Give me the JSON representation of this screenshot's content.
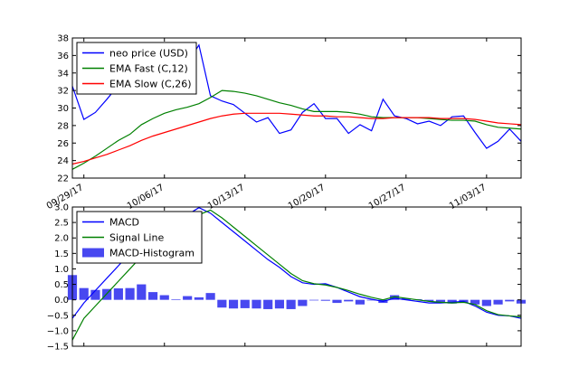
{
  "chart_data": [
    {
      "type": "line",
      "ylim": [
        22,
        38
      ],
      "yticks": [
        22,
        24,
        26,
        28,
        30,
        32,
        34,
        36,
        38
      ],
      "xlim": [
        0,
        39
      ],
      "xtick_positions": [
        1,
        8,
        15,
        22,
        29,
        36
      ],
      "xtick_labels": [
        "09/29/17",
        "10/06/17",
        "10/13/17",
        "10/20/17",
        "10/27/17",
        "11/03/17"
      ],
      "legend_position": "top-left",
      "series": [
        {
          "name": "neo price (USD)",
          "color": "#0000ff",
          "values": [
            32.5,
            28.7,
            29.5,
            31.0,
            32.6,
            34.3,
            35.8,
            34.8,
            33.0,
            31.8,
            35.1,
            37.2,
            31.4,
            30.8,
            30.4,
            29.4,
            28.4,
            28.9,
            27.1,
            27.5,
            29.5,
            30.5,
            28.8,
            28.8,
            27.1,
            28.1,
            27.4,
            31.0,
            29.1,
            28.8,
            28.2,
            28.5,
            28.0,
            29.0,
            29.1,
            27.2,
            25.4,
            26.2,
            27.6,
            26.2
          ]
        },
        {
          "name": "EMA Fast (C,12)",
          "color": "#008000",
          "values": [
            23.0,
            23.7,
            24.5,
            25.4,
            26.3,
            27.0,
            28.1,
            28.8,
            29.4,
            29.8,
            30.1,
            30.5,
            31.2,
            32.0,
            31.9,
            31.7,
            31.4,
            31.0,
            30.6,
            30.3,
            29.9,
            29.6,
            29.6,
            29.6,
            29.5,
            29.3,
            29.0,
            28.9,
            28.9,
            28.9,
            28.9,
            28.8,
            28.7,
            28.6,
            28.6,
            28.5,
            28.1,
            27.8,
            27.7,
            27.6
          ]
        },
        {
          "name": "EMA Slow (C,26)",
          "color": "#ff0000",
          "values": [
            23.6,
            23.9,
            24.3,
            24.7,
            25.2,
            25.7,
            26.3,
            26.8,
            27.2,
            27.6,
            28.0,
            28.4,
            28.8,
            29.1,
            29.3,
            29.4,
            29.4,
            29.4,
            29.4,
            29.3,
            29.2,
            29.1,
            29.1,
            29.0,
            29.0,
            28.9,
            28.8,
            28.8,
            28.9,
            28.9,
            28.9,
            28.9,
            28.8,
            28.8,
            28.8,
            28.7,
            28.5,
            28.3,
            28.2,
            28.1
          ]
        }
      ]
    },
    {
      "type": "line",
      "ylim": [
        -1.5,
        3.0
      ],
      "yticks": [
        -1.5,
        -1.0,
        -0.5,
        0.0,
        0.5,
        1.0,
        1.5,
        2.0,
        2.5,
        3.0
      ],
      "ytick_labels": [
        "−1.5",
        "−1.0",
        "−0.5",
        "0.0",
        "0.5",
        "1.0",
        "1.5",
        "2.0",
        "2.5",
        "3.0"
      ],
      "xlim": [
        0,
        39
      ],
      "legend_position": "top-left",
      "series": [
        {
          "name": "MACD",
          "color": "#0000ff",
          "values": [
            -0.6,
            -0.1,
            0.3,
            0.7,
            1.1,
            1.5,
            1.8,
            2.1,
            2.35,
            2.55,
            2.75,
            2.98,
            2.8,
            2.5,
            2.2,
            1.9,
            1.6,
            1.3,
            1.05,
            0.75,
            0.55,
            0.5,
            0.52,
            0.4,
            0.25,
            0.1,
            0.02,
            -0.05,
            0.05,
            0.0,
            -0.05,
            -0.1,
            -0.1,
            -0.08,
            -0.05,
            -0.2,
            -0.4,
            -0.5,
            -0.52,
            -0.6
          ]
        },
        {
          "name": "Signal Line",
          "color": "#008000",
          "values": [
            -1.3,
            -0.6,
            -0.2,
            0.2,
            0.6,
            1.0,
            1.4,
            1.7,
            2.0,
            2.25,
            2.55,
            2.75,
            2.9,
            2.65,
            2.35,
            2.05,
            1.75,
            1.45,
            1.15,
            0.85,
            0.62,
            0.52,
            0.48,
            0.4,
            0.3,
            0.18,
            0.08,
            0.0,
            0.1,
            0.05,
            0.0,
            -0.05,
            -0.08,
            -0.1,
            -0.08,
            -0.15,
            -0.35,
            -0.48,
            -0.52,
            -0.55
          ]
        },
        {
          "name": "MACD-Histogram",
          "color": "#4848f0",
          "type": "bar",
          "values": [
            0.8,
            0.38,
            0.32,
            0.35,
            0.37,
            0.38,
            0.5,
            0.25,
            0.15,
            0.02,
            0.12,
            0.08,
            0.22,
            -0.25,
            -0.28,
            -0.27,
            -0.28,
            -0.3,
            -0.28,
            -0.3,
            -0.2,
            -0.02,
            -0.03,
            -0.1,
            -0.05,
            -0.15,
            -0.02,
            -0.1,
            0.15,
            0.05,
            0.02,
            -0.05,
            -0.1,
            -0.12,
            -0.1,
            -0.15,
            -0.2,
            -0.15,
            -0.05,
            -0.12
          ]
        }
      ]
    }
  ]
}
